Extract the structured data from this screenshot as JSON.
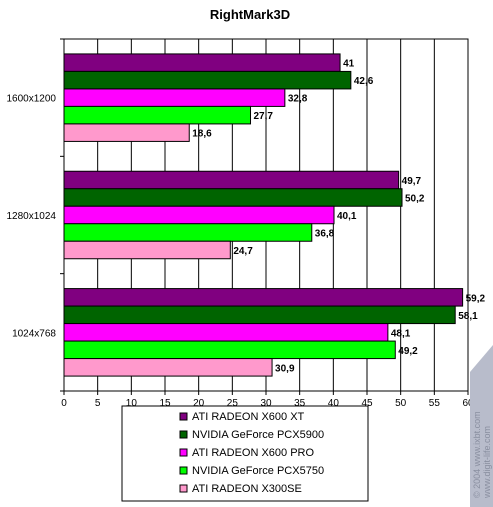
{
  "chart_data": {
    "type": "bar",
    "orientation": "horizontal",
    "title": "RightMark3D",
    "categories": [
      "1600x1200",
      "1280x1024",
      "1024x768"
    ],
    "series": [
      {
        "name": "ATI  RADEON X600 XT",
        "color": "#800080",
        "values": [
          41,
          49.7,
          59.2
        ],
        "labels": [
          "41",
          "49,7",
          "59,2"
        ]
      },
      {
        "name": "NVIDIA GeForce PCX5900",
        "color": "#006400",
        "values": [
          42.6,
          50.2,
          58.1
        ],
        "labels": [
          "42,6",
          "50,2",
          "58,1"
        ]
      },
      {
        "name": "ATI RADEON X600 PRO",
        "color": "#ff00ff",
        "values": [
          32.8,
          40.1,
          48.1
        ],
        "labels": [
          "32,8",
          "40,1",
          "48,1"
        ]
      },
      {
        "name": "NVIDIA GeForce PCX5750",
        "color": "#00ff00",
        "values": [
          27.7,
          36.8,
          49.2
        ],
        "labels": [
          "27,7",
          "36,8",
          "49,2"
        ]
      },
      {
        "name": "ATI RADEON X300SE",
        "color": "#ff99cc",
        "values": [
          18.6,
          24.7,
          30.9
        ],
        "labels": [
          "18,6",
          "24,7",
          "30,9"
        ]
      }
    ],
    "xlim": [
      0,
      60
    ],
    "xticks": [
      0,
      5,
      10,
      15,
      20,
      25,
      30,
      35,
      40,
      45,
      50,
      55,
      60
    ],
    "grid": true,
    "legend": "bottom"
  },
  "watermark": {
    "line1": "© 2004 www.ixbt.com",
    "line2": "www.digit-life.com"
  }
}
